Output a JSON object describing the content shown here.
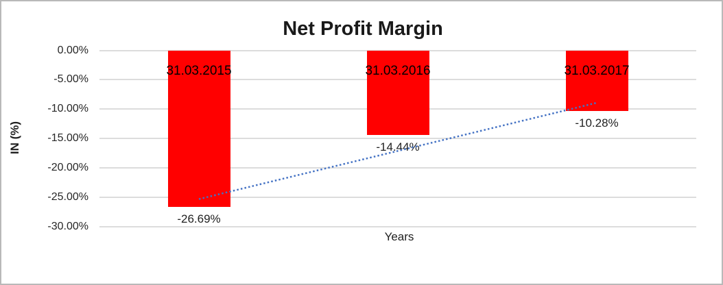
{
  "chart_data": {
    "type": "bar",
    "title": "Net Profit Margin",
    "xlabel": "Years",
    "ylabel": "IN (%)",
    "categories": [
      "31.03.2015",
      "31.03.2016",
      "31.03.2017"
    ],
    "values": [
      -26.69,
      -14.44,
      -10.28
    ],
    "value_labels": [
      "-26.69%",
      "-14.44%",
      "-10.28%"
    ],
    "yticks": [
      {
        "value": 0,
        "label": "0.00%"
      },
      {
        "value": -5,
        "label": "-5.00%"
      },
      {
        "value": -10,
        "label": "-10.00%"
      },
      {
        "value": -15,
        "label": "-15.00%"
      },
      {
        "value": -20,
        "label": "-20.00%"
      },
      {
        "value": -25,
        "label": "-25.00%"
      },
      {
        "value": -30,
        "label": "-30.00%"
      }
    ],
    "ylim": [
      -30,
      0
    ],
    "grid": true,
    "legend": false,
    "bar_color": "#ff0000",
    "trendline": {
      "style": "dotted",
      "color": "#4472c4"
    }
  }
}
